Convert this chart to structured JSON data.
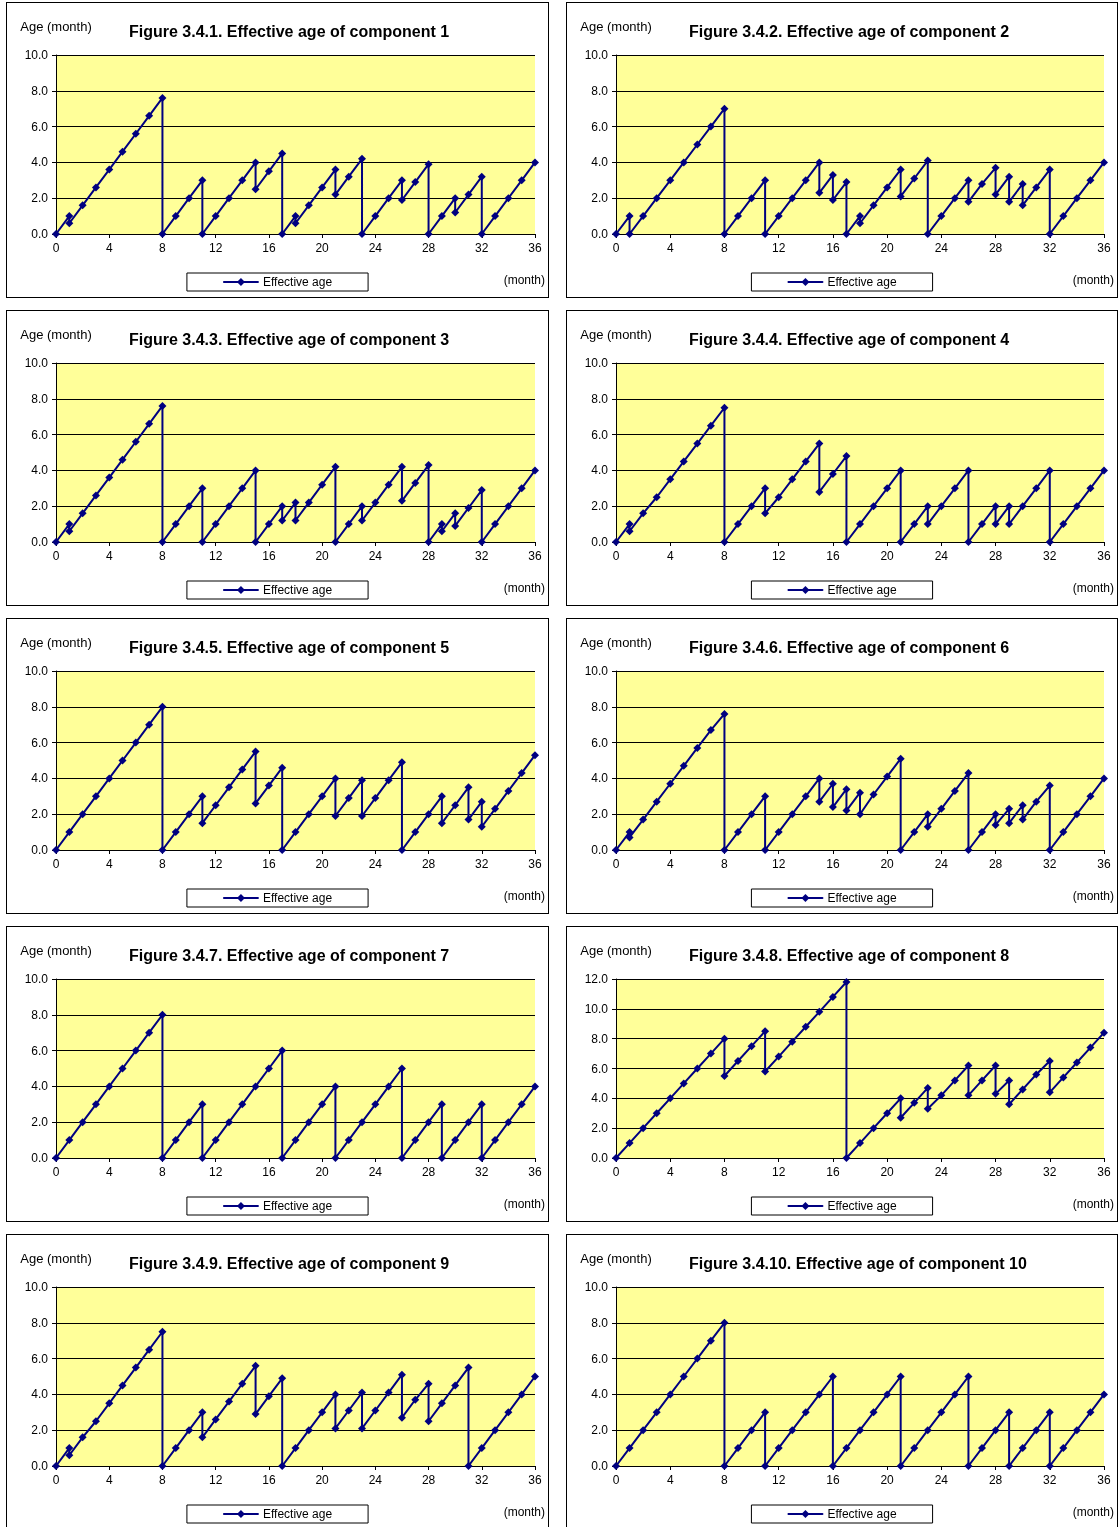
{
  "chart_data": [
    {
      "type": "line",
      "title": "Figure 3.4.1. Effective age of component 1",
      "ylabel": "Age (month)",
      "xlabel": "(month)",
      "legend": "bottom",
      "grid": "y",
      "marker": "diamond",
      "line_style": "solid",
      "xlim": [
        0,
        36
      ],
      "xticks": [
        0,
        4,
        8,
        12,
        16,
        20,
        24,
        28,
        32,
        36
      ],
      "ylim": [
        0,
        10
      ],
      "yticks": [
        {
          "value": 0,
          "label": "0.0"
        },
        {
          "value": 2,
          "label": "2.0"
        },
        {
          "value": 4,
          "label": "4.0"
        },
        {
          "value": 6,
          "label": "6.0"
        },
        {
          "value": 8,
          "label": "8.0"
        },
        {
          "value": 10,
          "label": "10.0"
        }
      ],
      "series": [
        {
          "name": "Effective age",
          "color": "#000080",
          "x": [
            0,
            1,
            1,
            2,
            3,
            4,
            5,
            6,
            7,
            8,
            8,
            9,
            10,
            11,
            11,
            12,
            13,
            14,
            15,
            15,
            16,
            17,
            17,
            18,
            18,
            19,
            20,
            21,
            21,
            22,
            23,
            23,
            24,
            25,
            26,
            26,
            27,
            28,
            28,
            29,
            30,
            30,
            31,
            32,
            32,
            33,
            34,
            35,
            36
          ],
          "values": [
            0,
            1,
            0.6,
            1.6,
            2.6,
            3.6,
            4.6,
            5.6,
            6.6,
            7.6,
            0,
            1,
            2,
            3,
            0,
            1,
            2,
            3,
            4,
            2.5,
            3.5,
            4.5,
            0,
            1,
            0.6,
            1.6,
            2.6,
            3.6,
            2.2,
            3.2,
            4.2,
            0,
            1,
            2,
            3,
            1.9,
            2.9,
            3.9,
            0,
            1,
            2,
            1.2,
            2.2,
            3.2,
            0,
            1,
            2,
            3,
            4
          ]
        }
      ]
    },
    {
      "type": "line",
      "title": "Figure 3.4.2. Effective age of component 2",
      "ylabel": "Age (month)",
      "xlabel": "(month)",
      "legend": "bottom",
      "grid": "y",
      "marker": "diamond",
      "line_style": "solid",
      "xlim": [
        0,
        36
      ],
      "xticks": [
        0,
        4,
        8,
        12,
        16,
        20,
        24,
        28,
        32,
        36
      ],
      "ylim": [
        0,
        10
      ],
      "yticks": [
        {
          "value": 0,
          "label": "0.0"
        },
        {
          "value": 2,
          "label": "2.0"
        },
        {
          "value": 4,
          "label": "4.0"
        },
        {
          "value": 6,
          "label": "6.0"
        },
        {
          "value": 8,
          "label": "8.0"
        },
        {
          "value": 10,
          "label": "10.0"
        }
      ],
      "series": [
        {
          "name": "Effective age",
          "color": "#000080",
          "x": [
            0,
            1,
            1,
            2,
            3,
            4,
            5,
            6,
            7,
            8,
            8,
            9,
            10,
            11,
            11,
            12,
            13,
            14,
            15,
            15,
            16,
            16,
            17,
            17,
            18,
            18,
            19,
            20,
            21,
            21,
            22,
            23,
            23,
            24,
            25,
            26,
            26,
            27,
            28,
            28,
            29,
            29,
            30,
            30,
            31,
            32,
            32,
            33,
            34,
            35,
            36
          ],
          "values": [
            0,
            1,
            0,
            1,
            2,
            3,
            4,
            5,
            6,
            7,
            0,
            1,
            2,
            3,
            0,
            1,
            2,
            3,
            4,
            2.3,
            3.3,
            1.9,
            2.9,
            0,
            1,
            0.6,
            1.6,
            2.6,
            3.6,
            2.1,
            3.1,
            4.1,
            0,
            1,
            2,
            3,
            1.8,
            2.8,
            3.7,
            2.2,
            3.2,
            1.8,
            2.8,
            1.6,
            2.6,
            3.6,
            0,
            1,
            2,
            3,
            4
          ]
        }
      ]
    },
    {
      "type": "line",
      "title": "Figure 3.4.3. Effective age of component 3",
      "ylabel": "Age (month)",
      "xlabel": "(month)",
      "legend": "bottom",
      "grid": "y",
      "marker": "diamond",
      "line_style": "solid",
      "xlim": [
        0,
        36
      ],
      "xticks": [
        0,
        4,
        8,
        12,
        16,
        20,
        24,
        28,
        32,
        36
      ],
      "ylim": [
        0,
        10
      ],
      "yticks": [
        {
          "value": 0,
          "label": "0.0"
        },
        {
          "value": 2,
          "label": "2.0"
        },
        {
          "value": 4,
          "label": "4.0"
        },
        {
          "value": 6,
          "label": "6.0"
        },
        {
          "value": 8,
          "label": "8.0"
        },
        {
          "value": 10,
          "label": "10.0"
        }
      ],
      "series": [
        {
          "name": "Effective age",
          "color": "#000080",
          "x": [
            0,
            1,
            1,
            2,
            3,
            4,
            5,
            6,
            7,
            8,
            8,
            9,
            10,
            11,
            11,
            12,
            13,
            14,
            15,
            15,
            16,
            17,
            17,
            18,
            18,
            19,
            20,
            21,
            21,
            22,
            23,
            23,
            24,
            25,
            26,
            26,
            27,
            28,
            28,
            29,
            29,
            30,
            30,
            31,
            32,
            32,
            33,
            34,
            35,
            36
          ],
          "values": [
            0,
            1,
            0.6,
            1.6,
            2.6,
            3.6,
            4.6,
            5.6,
            6.6,
            7.6,
            0,
            1,
            2,
            3,
            0,
            1,
            2,
            3,
            4,
            0,
            1,
            2,
            1.2,
            2.2,
            1.2,
            2.2,
            3.2,
            4.2,
            0,
            1,
            2,
            1.2,
            2.2,
            3.2,
            4.2,
            2.3,
            3.3,
            4.3,
            0,
            1,
            0.6,
            1.6,
            0.9,
            1.9,
            2.9,
            0,
            1,
            2,
            3,
            4
          ]
        }
      ]
    },
    {
      "type": "line",
      "title": "Figure 3.4.4. Effective age of component 4",
      "ylabel": "Age (month)",
      "xlabel": "(month)",
      "legend": "bottom",
      "grid": "y",
      "marker": "diamond",
      "line_style": "solid",
      "xlim": [
        0,
        36
      ],
      "xticks": [
        0,
        4,
        8,
        12,
        16,
        20,
        24,
        28,
        32,
        36
      ],
      "ylim": [
        0,
        10
      ],
      "yticks": [
        {
          "value": 0,
          "label": "0.0"
        },
        {
          "value": 2,
          "label": "2.0"
        },
        {
          "value": 4,
          "label": "4.0"
        },
        {
          "value": 6,
          "label": "6.0"
        },
        {
          "value": 8,
          "label": "8.0"
        },
        {
          "value": 10,
          "label": "10.0"
        }
      ],
      "series": [
        {
          "name": "Effective age",
          "color": "#000080",
          "x": [
            0,
            1,
            1,
            2,
            3,
            4,
            5,
            6,
            7,
            8,
            8,
            9,
            10,
            11,
            11,
            12,
            13,
            14,
            15,
            15,
            16,
            17,
            17,
            18,
            19,
            20,
            21,
            21,
            22,
            23,
            23,
            24,
            25,
            26,
            26,
            27,
            28,
            28,
            29,
            29,
            30,
            31,
            32,
            32,
            33,
            34,
            35,
            36
          ],
          "values": [
            0,
            1,
            0.6,
            1.6,
            2.5,
            3.5,
            4.5,
            5.5,
            6.5,
            7.5,
            0,
            1,
            2,
            3,
            1.6,
            2.5,
            3.5,
            4.5,
            5.5,
            2.8,
            3.8,
            4.8,
            0,
            1,
            2,
            3,
            4,
            0,
            1,
            2,
            1,
            2,
            3,
            4,
            0,
            1,
            2,
            1,
            2,
            1,
            2,
            3,
            4,
            0,
            1,
            2,
            3,
            4
          ]
        }
      ]
    },
    {
      "type": "line",
      "title": "Figure 3.4.5. Effective age of component 5",
      "ylabel": "Age (month)",
      "xlabel": "(month)",
      "legend": "bottom",
      "grid": "y",
      "marker": "diamond",
      "line_style": "solid",
      "xlim": [
        0,
        36
      ],
      "xticks": [
        0,
        4,
        8,
        12,
        16,
        20,
        24,
        28,
        32,
        36
      ],
      "ylim": [
        0,
        10
      ],
      "yticks": [
        {
          "value": 0,
          "label": "0.0"
        },
        {
          "value": 2,
          "label": "2.0"
        },
        {
          "value": 4,
          "label": "4.0"
        },
        {
          "value": 6,
          "label": "6.0"
        },
        {
          "value": 8,
          "label": "8.0"
        },
        {
          "value": 10,
          "label": "10.0"
        }
      ],
      "series": [
        {
          "name": "Effective age",
          "color": "#000080",
          "x": [
            0,
            1,
            2,
            3,
            4,
            5,
            6,
            7,
            8,
            8,
            9,
            10,
            11,
            11,
            12,
            13,
            14,
            15,
            15,
            16,
            17,
            17,
            18,
            19,
            20,
            21,
            21,
            22,
            23,
            23,
            24,
            25,
            26,
            26,
            27,
            28,
            29,
            29,
            30,
            31,
            31,
            32,
            32,
            33,
            34,
            35,
            36
          ],
          "values": [
            0,
            1,
            2,
            3,
            4,
            5,
            6,
            7,
            8,
            0,
            1,
            2,
            3,
            1.5,
            2.5,
            3.5,
            4.5,
            5.5,
            2.6,
            3.6,
            4.6,
            0,
            1,
            2,
            3,
            4,
            1.9,
            2.9,
            3.9,
            1.9,
            2.9,
            3.9,
            4.9,
            0,
            1,
            2,
            3,
            1.5,
            2.5,
            3.5,
            1.7,
            2.7,
            1.3,
            2.3,
            3.3,
            4.3,
            5.3
          ]
        }
      ]
    },
    {
      "type": "line",
      "title": "Figure 3.4.6. Effective age of component 6",
      "ylabel": "Age (month)",
      "xlabel": "(month)",
      "legend": "bottom",
      "grid": "y",
      "marker": "diamond",
      "line_style": "solid",
      "xlim": [
        0,
        36
      ],
      "xticks": [
        0,
        4,
        8,
        12,
        16,
        20,
        24,
        28,
        32,
        36
      ],
      "ylim": [
        0,
        10
      ],
      "yticks": [
        {
          "value": 0,
          "label": "0.0"
        },
        {
          "value": 2,
          "label": "2.0"
        },
        {
          "value": 4,
          "label": "4.0"
        },
        {
          "value": 6,
          "label": "6.0"
        },
        {
          "value": 8,
          "label": "8.0"
        },
        {
          "value": 10,
          "label": "10.0"
        }
      ],
      "series": [
        {
          "name": "Effective age",
          "color": "#000080",
          "x": [
            0,
            1,
            1,
            2,
            3,
            4,
            5,
            6,
            7,
            8,
            8,
            9,
            10,
            11,
            11,
            12,
            13,
            14,
            15,
            15,
            16,
            16,
            17,
            17,
            18,
            18,
            19,
            20,
            21,
            21,
            22,
            23,
            23,
            24,
            25,
            26,
            26,
            27,
            28,
            28,
            29,
            29,
            30,
            30,
            31,
            32,
            32,
            33,
            34,
            35,
            36
          ],
          "values": [
            0,
            1,
            0.7,
            1.7,
            2.7,
            3.7,
            4.7,
            5.7,
            6.7,
            7.6,
            0,
            1,
            2,
            3,
            0,
            1,
            2,
            3,
            4,
            2.7,
            3.7,
            2.4,
            3.4,
            2.2,
            3.2,
            2.0,
            3.1,
            4.1,
            5.1,
            0,
            1,
            2,
            1.3,
            2.3,
            3.3,
            4.3,
            0,
            1,
            2,
            1.4,
            2.3,
            1.5,
            2.5,
            1.7,
            2.7,
            3.6,
            0,
            1,
            2,
            3,
            4
          ]
        }
      ]
    },
    {
      "type": "line",
      "title": "Figure 3.4.7. Effective age of component 7",
      "ylabel": "Age (month)",
      "xlabel": "(month)",
      "legend": "bottom",
      "grid": "y",
      "marker": "diamond",
      "line_style": "solid",
      "xlim": [
        0,
        36
      ],
      "xticks": [
        0,
        4,
        8,
        12,
        16,
        20,
        24,
        28,
        32,
        36
      ],
      "ylim": [
        0,
        10
      ],
      "yticks": [
        {
          "value": 0,
          "label": "0.0"
        },
        {
          "value": 2,
          "label": "2.0"
        },
        {
          "value": 4,
          "label": "4.0"
        },
        {
          "value": 6,
          "label": "6.0"
        },
        {
          "value": 8,
          "label": "8.0"
        },
        {
          "value": 10,
          "label": "10.0"
        }
      ],
      "series": [
        {
          "name": "Effective age",
          "color": "#000080",
          "x": [
            0,
            1,
            2,
            3,
            4,
            5,
            6,
            7,
            8,
            8,
            9,
            10,
            11,
            11,
            12,
            13,
            14,
            15,
            16,
            17,
            17,
            18,
            19,
            20,
            21,
            21,
            22,
            23,
            24,
            25,
            26,
            26,
            27,
            28,
            29,
            29,
            30,
            31,
            32,
            32,
            33,
            34,
            35,
            36
          ],
          "values": [
            0,
            1,
            2,
            3,
            4,
            5,
            6,
            7,
            8,
            0,
            1,
            2,
            3,
            0,
            1,
            2,
            3,
            4,
            5,
            6,
            0,
            1,
            2,
            3,
            4,
            0,
            1,
            2,
            3,
            4,
            5,
            0,
            1,
            2,
            3,
            0,
            1,
            2,
            3,
            0,
            1,
            2,
            3,
            4
          ]
        }
      ]
    },
    {
      "type": "line",
      "title": "Figure 3.4.8. Effective age of component 8",
      "ylabel": "Age (month)",
      "xlabel": "(month)",
      "legend": "bottom",
      "grid": "y",
      "marker": "diamond",
      "line_style": "solid",
      "xlim": [
        0,
        36
      ],
      "xticks": [
        0,
        4,
        8,
        12,
        16,
        20,
        24,
        28,
        32,
        36
      ],
      "ylim": [
        0,
        12
      ],
      "yticks": [
        {
          "value": 0,
          "label": "0.0"
        },
        {
          "value": 2,
          "label": "2.0"
        },
        {
          "value": 4,
          "label": "4.0"
        },
        {
          "value": 6,
          "label": "6.0"
        },
        {
          "value": 8,
          "label": "8.0"
        },
        {
          "value": 10,
          "label": "10.0"
        },
        {
          "value": 12,
          "label": "12.0"
        }
      ],
      "series": [
        {
          "name": "Effective age",
          "color": "#000080",
          "x": [
            0,
            1,
            2,
            3,
            4,
            5,
            6,
            7,
            8,
            8,
            9,
            10,
            11,
            11,
            12,
            13,
            14,
            15,
            16,
            17,
            17,
            18,
            19,
            20,
            21,
            21,
            22,
            23,
            23,
            24,
            25,
            26,
            26,
            27,
            28,
            28,
            29,
            29,
            30,
            31,
            32,
            32,
            33,
            34,
            35,
            36
          ],
          "values": [
            0,
            1,
            2,
            3,
            4,
            5,
            6,
            7,
            8,
            5.5,
            6.5,
            7.5,
            8.5,
            5.8,
            6.8,
            7.8,
            8.8,
            9.8,
            10.8,
            11.8,
            0,
            1,
            2,
            3,
            4,
            2.7,
            3.7,
            4.7,
            3.3,
            4.2,
            5.2,
            6.2,
            4.2,
            5.2,
            6.2,
            4.3,
            5.2,
            3.6,
            4.6,
            5.6,
            6.5,
            4.4,
            5.4,
            6.4,
            7.4,
            8.4
          ]
        }
      ]
    },
    {
      "type": "line",
      "title": "Figure 3.4.9. Effective age of component 9",
      "ylabel": "Age (month)",
      "xlabel": "(month)",
      "legend": "bottom",
      "grid": "y",
      "marker": "diamond",
      "line_style": "solid",
      "xlim": [
        0,
        36
      ],
      "xticks": [
        0,
        4,
        8,
        12,
        16,
        20,
        24,
        28,
        32,
        36
      ],
      "ylim": [
        0,
        10
      ],
      "yticks": [
        {
          "value": 0,
          "label": "0.0"
        },
        {
          "value": 2,
          "label": "2.0"
        },
        {
          "value": 4,
          "label": "4.0"
        },
        {
          "value": 6,
          "label": "6.0"
        },
        {
          "value": 8,
          "label": "8.0"
        },
        {
          "value": 10,
          "label": "10.0"
        }
      ],
      "series": [
        {
          "name": "Effective age",
          "color": "#000080",
          "x": [
            0,
            1,
            1,
            2,
            3,
            4,
            5,
            6,
            7,
            8,
            8,
            9,
            10,
            11,
            11,
            12,
            13,
            14,
            15,
            15,
            16,
            17,
            17,
            18,
            19,
            20,
            21,
            21,
            22,
            23,
            23,
            24,
            25,
            26,
            26,
            27,
            28,
            28,
            29,
            30,
            31,
            31,
            32,
            33,
            34,
            35,
            36
          ],
          "values": [
            0,
            1,
            0.6,
            1.6,
            2.5,
            3.5,
            4.5,
            5.5,
            6.5,
            7.5,
            0,
            1,
            2,
            3,
            1.6,
            2.6,
            3.6,
            4.6,
            5.6,
            2.9,
            3.9,
            4.9,
            0,
            1,
            2,
            3,
            4,
            2.1,
            3.1,
            4.1,
            2.1,
            3.1,
            4.1,
            5.1,
            2.7,
            3.7,
            4.6,
            2.5,
            3.5,
            4.5,
            5.5,
            0,
            1,
            2,
            3,
            4,
            5
          ]
        }
      ]
    },
    {
      "type": "line",
      "title": "Figure 3.4.10. Effective age of component 10",
      "ylabel": "Age (month)",
      "xlabel": "(month)",
      "legend": "bottom",
      "grid": "y",
      "marker": "diamond",
      "line_style": "solid",
      "xlim": [
        0,
        36
      ],
      "xticks": [
        0,
        4,
        8,
        12,
        16,
        20,
        24,
        28,
        32,
        36
      ],
      "ylim": [
        0,
        10
      ],
      "yticks": [
        {
          "value": 0,
          "label": "0.0"
        },
        {
          "value": 2,
          "label": "2.0"
        },
        {
          "value": 4,
          "label": "4.0"
        },
        {
          "value": 6,
          "label": "6.0"
        },
        {
          "value": 8,
          "label": "8.0"
        },
        {
          "value": 10,
          "label": "10.0"
        }
      ],
      "series": [
        {
          "name": "Effective age",
          "color": "#000080",
          "x": [
            0,
            1,
            2,
            3,
            4,
            5,
            6,
            7,
            8,
            8,
            9,
            10,
            11,
            11,
            12,
            13,
            14,
            15,
            16,
            16,
            17,
            18,
            19,
            20,
            21,
            21,
            22,
            23,
            24,
            25,
            26,
            26,
            27,
            28,
            29,
            29,
            30,
            31,
            32,
            32,
            33,
            34,
            35,
            36
          ],
          "values": [
            0,
            1,
            2,
            3,
            4,
            5,
            6,
            7,
            8,
            0,
            1,
            2,
            3,
            0,
            1,
            2,
            3,
            4,
            5,
            0,
            1,
            2,
            3,
            4,
            5,
            0,
            1,
            2,
            3,
            4,
            5,
            0,
            1,
            2,
            3,
            0,
            1,
            2,
            3,
            0,
            1,
            2,
            3,
            4
          ]
        }
      ]
    }
  ]
}
